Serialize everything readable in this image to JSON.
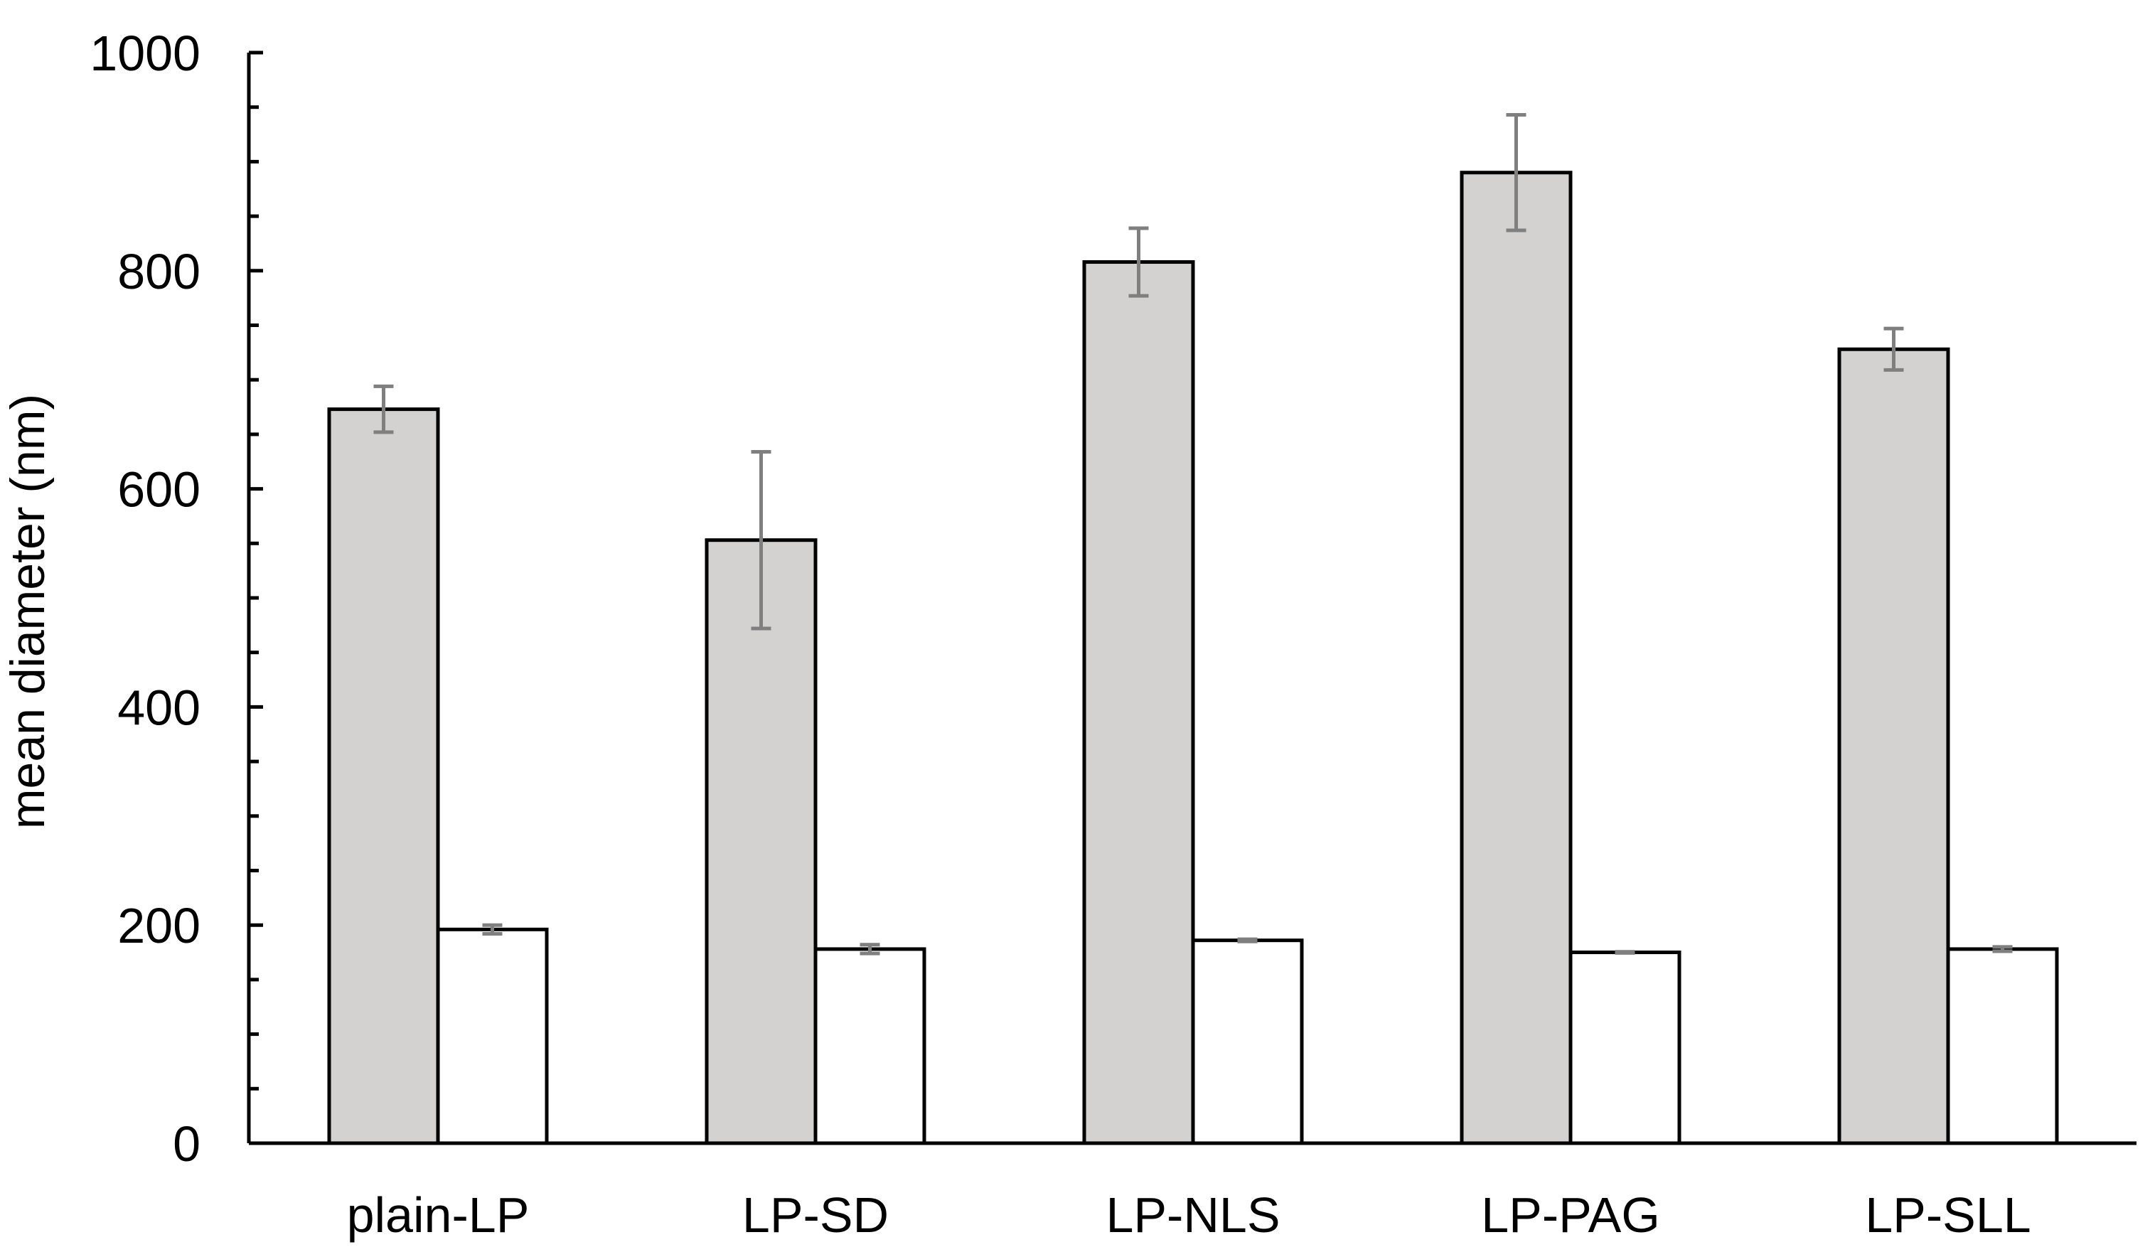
{
  "chart_data": {
    "type": "bar",
    "title": "",
    "xlabel": "",
    "ylabel": "mean diameter (nm)",
    "ylim": [
      0,
      1000
    ],
    "yticks": [
      0,
      200,
      400,
      600,
      800,
      1000
    ],
    "y_minor_step": 50,
    "grid": false,
    "legend": "none",
    "categories": [
      "plain-LP",
      "LP-SD",
      "LP-NLS",
      "LP-PAG",
      "LP-SLL"
    ],
    "series": [
      {
        "values": [
          673,
          553,
          808,
          890,
          728
        ],
        "errors": [
          21,
          81,
          31,
          53,
          19
        ],
        "color": "#d3d2d0"
      },
      {
        "values": [
          196,
          178,
          186,
          175,
          178
        ],
        "errors": [
          4,
          4,
          1,
          0.5,
          2
        ],
        "color": "#ffffff"
      }
    ],
    "bar_edge_color": "#000000",
    "error_bar_color": "#7f7f7f",
    "axis_color": "#000000"
  }
}
